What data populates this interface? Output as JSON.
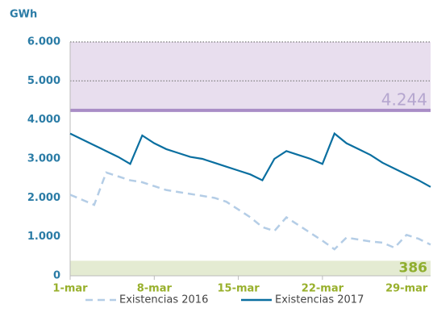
{
  "chart_data": {
    "type": "line",
    "y_label": "GWh",
    "categories": [
      "1-mar",
      null,
      null,
      null,
      null,
      null,
      null,
      "8-mar",
      null,
      null,
      null,
      null,
      null,
      null,
      "15-mar",
      null,
      null,
      null,
      null,
      null,
      null,
      "22-mar",
      null,
      null,
      null,
      null,
      null,
      null,
      "29-mar",
      null,
      null
    ],
    "series": [
      {
        "name": "Existencias 2016",
        "color": "#b4cde6",
        "dash": true,
        "values": [
          2080,
          1950,
          1820,
          2650,
          2550,
          2450,
          2400,
          2300,
          2200,
          2150,
          2100,
          2050,
          2000,
          1900,
          1700,
          1500,
          1250,
          1150,
          1500,
          1300,
          1100,
          900,
          680,
          980,
          930,
          880,
          850,
          720,
          1050,
          950,
          800
        ]
      },
      {
        "name": "Existencias 2017",
        "color": "#0a6fa0",
        "dash": false,
        "values": [
          3650,
          3500,
          3350,
          3200,
          3050,
          2870,
          3600,
          3400,
          3250,
          3150,
          3050,
          3000,
          2900,
          2800,
          2700,
          2600,
          2450,
          3000,
          3200,
          3100,
          3000,
          2870,
          3650,
          3400,
          3250,
          3100,
          2900,
          2750,
          2600,
          2450,
          2280
        ]
      }
    ],
    "bands": [
      {
        "low": 4244,
        "high": 6000,
        "label": "4.244",
        "fill": "#e8deee",
        "line": "#a98dc6",
        "text": "#b5a6cf"
      },
      {
        "low": 0,
        "high": 386,
        "label": "386",
        "fill": "#e4ebd2",
        "line": "#e4ebd2",
        "text": "#8fae2e"
      }
    ],
    "ylim": [
      0,
      6000
    ],
    "yticks": [
      {
        "value": 0,
        "label": "0"
      },
      {
        "value": 1000,
        "label": "1.000"
      },
      {
        "value": 2000,
        "label": "2.000"
      },
      {
        "value": 3000,
        "label": "3.000"
      },
      {
        "value": 4000,
        "label": "4.000"
      },
      {
        "value": 5000,
        "label": "5.000"
      },
      {
        "value": 6000,
        "label": "6.000"
      }
    ],
    "legend": "bottom"
  }
}
